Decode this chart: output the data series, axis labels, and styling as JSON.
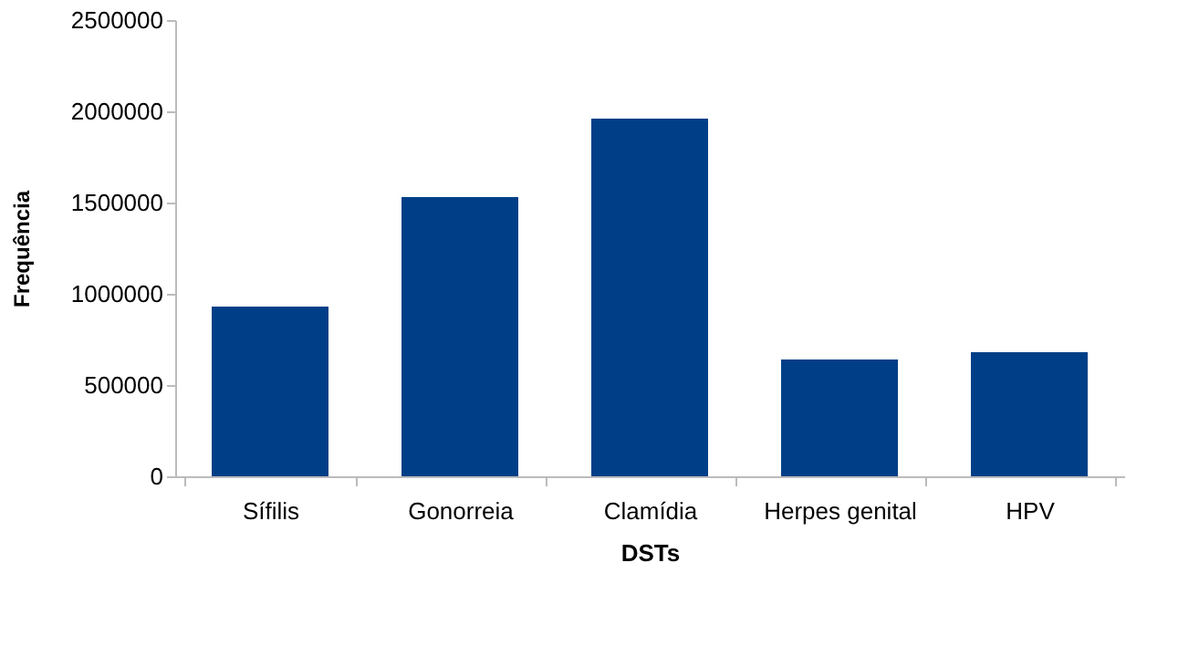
{
  "chart_data": {
    "type": "bar",
    "xlabel": "DSTs",
    "ylabel": "Frequência",
    "categories": [
      "Sífilis",
      "Gonorreia",
      "Clamídia",
      "Herpes genital",
      "HPV"
    ],
    "series": [
      {
        "color": "#003f87",
        "values": [
          930000,
          1530000,
          1960000,
          640000,
          680000
        ]
      }
    ],
    "ylim": [
      0,
      2500000
    ],
    "yticks": [
      0,
      500000,
      1000000,
      1500000,
      2000000,
      2500000
    ],
    "grid": false,
    "legend": false
  }
}
